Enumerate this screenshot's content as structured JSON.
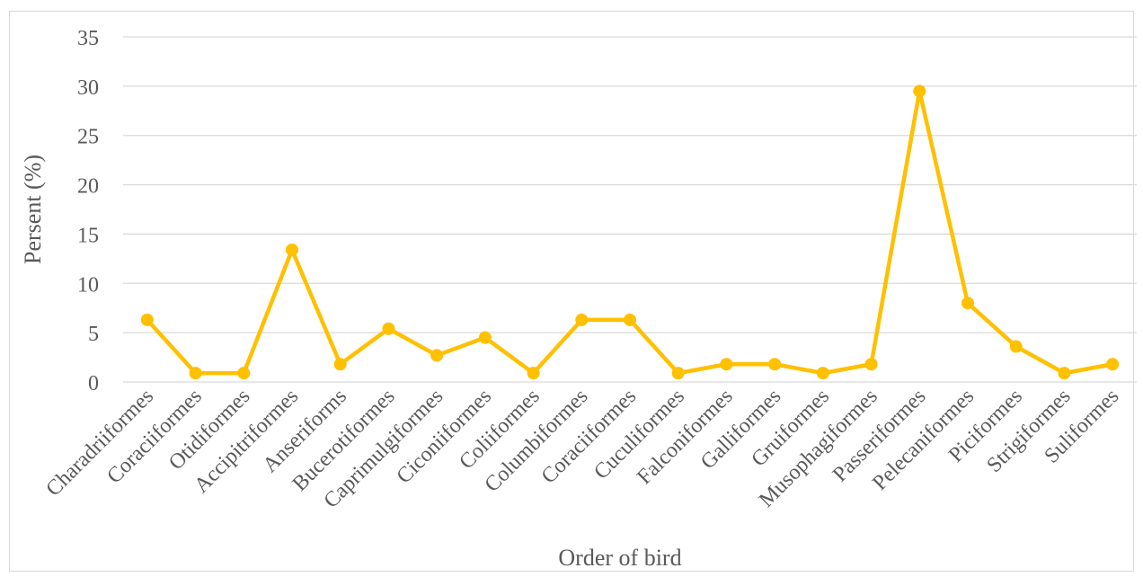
{
  "chart_data": {
    "type": "line",
    "title": "",
    "xlabel": "Order of bird",
    "ylabel": "Persent (%)",
    "ylim": [
      0,
      35
    ],
    "yticks": [
      "0",
      "5",
      "10",
      "15",
      "20",
      "25",
      "30",
      "35"
    ],
    "grid": true,
    "legend": "none",
    "categories": [
      "Charadriiformes",
      "Coraciiformes",
      "Otidiformes",
      "Accipitriformes",
      "Anseriforms",
      "Bucerotiformes",
      "Caprimulgiformes",
      "Ciconiiformes",
      "Coliiformes",
      "Columbiformes",
      "Coraciiformes",
      "Cuculiformes",
      "Falconiformes",
      "Galliformes",
      "Gruiformes",
      "Musophagiformes",
      "Passeriformes",
      "Pelecaniformes",
      "Piciformes",
      "Strigiformes",
      "Suliformes"
    ],
    "series": [
      {
        "values": [
          6.3,
          0.9,
          0.9,
          13.4,
          1.8,
          5.4,
          2.7,
          4.5,
          0.9,
          6.3,
          6.3,
          0.9,
          1.8,
          1.8,
          0.9,
          1.8,
          29.5,
          8.0,
          3.6,
          0.9,
          1.8
        ],
        "color": "#FFC000"
      }
    ],
    "gridline_color": "#d9d9d9",
    "text_color": "#595959"
  }
}
